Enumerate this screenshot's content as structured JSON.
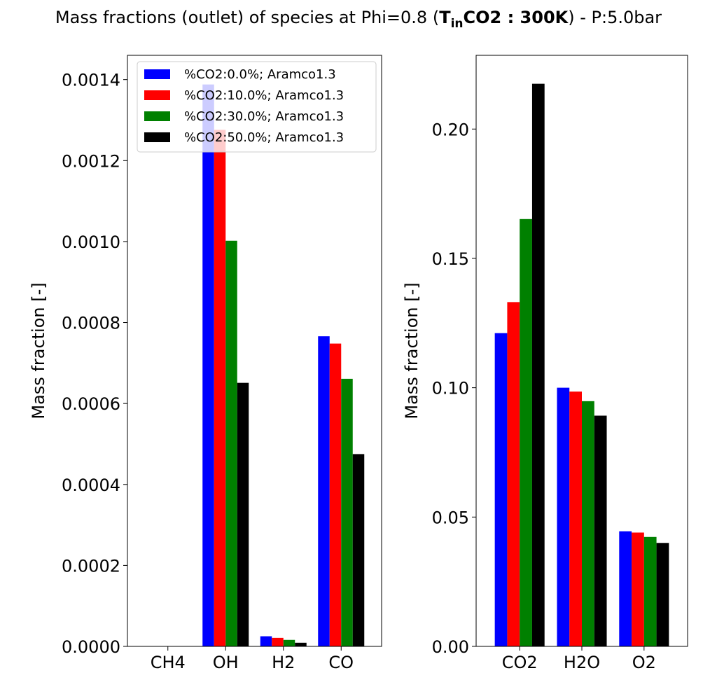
{
  "figure": {
    "title_prefix": "Mass fractions (outlet) of species at Phi=0.8  (",
    "title_bold_main": "T",
    "title_bold_sub": "in",
    "title_bold_rest": "CO2 : 300K",
    "title_suffix": ") - P:5.0bar"
  },
  "colors": {
    "blue": "#0000ff",
    "red": "#ff0000",
    "green": "#008000",
    "black": "#000000"
  },
  "chart_data": [
    {
      "type": "bar",
      "categories": [
        "CH4",
        "OH",
        "H2",
        "CO"
      ],
      "ylabel": "Mass fraction [-]",
      "xlabel": "",
      "ylim": [
        0,
        0.00146
      ],
      "yticks": [
        0.0,
        0.0002,
        0.0004,
        0.0006,
        0.0008,
        0.001,
        0.0012,
        0.0014
      ],
      "ytick_labels": [
        "0.0000",
        "0.0002",
        "0.0004",
        "0.0006",
        "0.0008",
        "0.0010",
        "0.0012",
        "0.0014"
      ],
      "legend_position": "upper-right",
      "series": [
        {
          "name": "%CO2:0.0%; Aramco1.3",
          "color": "#0000ff",
          "values": [
            0.0,
            0.001388,
            2.5e-05,
            0.000766
          ]
        },
        {
          "name": "%CO2:10.0%; Aramco1.3",
          "color": "#ff0000",
          "values": [
            0.0,
            0.001276,
            2.1e-05,
            0.000748
          ]
        },
        {
          "name": "%CO2:30.0%; Aramco1.3",
          "color": "#008000",
          "values": [
            0.0,
            0.001002,
            1.6e-05,
            0.000661
          ]
        },
        {
          "name": "%CO2:50.0%; Aramco1.3",
          "color": "#000000",
          "values": [
            0.0,
            0.000651,
            9e-06,
            0.000475
          ]
        }
      ]
    },
    {
      "type": "bar",
      "categories": [
        "CO2",
        "H2O",
        "O2"
      ],
      "ylabel": "Mass fraction [-]",
      "xlabel": "",
      "ylim": [
        0,
        0.2285
      ],
      "yticks": [
        0.0,
        0.05,
        0.1,
        0.15,
        0.2
      ],
      "ytick_labels": [
        "0.00",
        "0.05",
        "0.10",
        "0.15",
        "0.20"
      ],
      "series": [
        {
          "name": "%CO2:0.0%; Aramco1.3",
          "color": "#0000ff",
          "values": [
            0.1211,
            0.1,
            0.0445
          ]
        },
        {
          "name": "%CO2:10.0%; Aramco1.3",
          "color": "#ff0000",
          "values": [
            0.1331,
            0.0985,
            0.044
          ]
        },
        {
          "name": "%CO2:30.0%; Aramco1.3",
          "color": "#008000",
          "values": [
            0.1652,
            0.0948,
            0.0423
          ]
        },
        {
          "name": "%CO2:50.0%; Aramco1.3",
          "color": "#000000",
          "values": [
            0.2175,
            0.0892,
            0.04
          ]
        }
      ]
    }
  ]
}
